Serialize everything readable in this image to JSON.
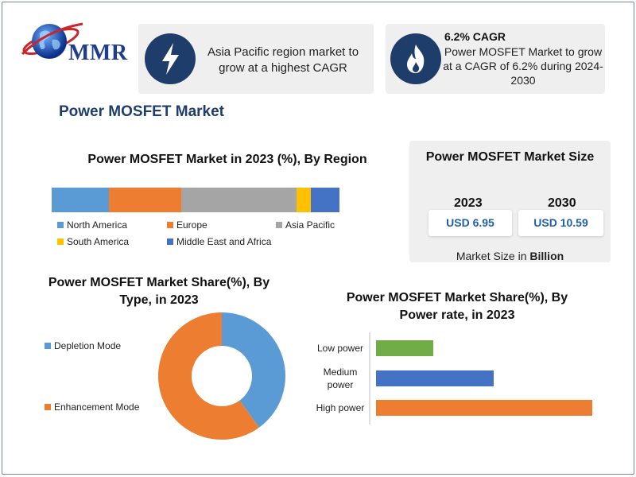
{
  "logo": {
    "text": "MMR"
  },
  "cards": {
    "cagr_region": {
      "icon": "lightning-bolt-icon",
      "text": "Asia Pacific region market to grow at a highest CAGR"
    },
    "cagr_market": {
      "icon": "flame-icon",
      "title": "6.2% CAGR",
      "text": "Power MOSFET Market to grow at a CAGR of 6.2% during 2024-2030"
    }
  },
  "page_title": "Power MOSFET Market",
  "market_size": {
    "title": "Power MOSFET Market Size",
    "year1": "2023",
    "value1": "USD 6.95",
    "year2": "2030",
    "value2": "USD 10.59",
    "note_prefix": "Market Size in ",
    "note_unit": "Billion"
  },
  "colors": {
    "north_america": "#5b9bd5",
    "europe": "#ed7d31",
    "asia_pacific": "#a5a5a5",
    "south_america": "#ffc000",
    "mea": "#4472c4",
    "depletion": "#5b9bd5",
    "enhancement": "#ed7d31",
    "low": "#70ad47",
    "medium": "#4472c4",
    "high": "#ed7d31",
    "brand_dark": "#1f3d6b"
  },
  "chart_data": [
    {
      "type": "bar",
      "stacked": true,
      "orientation": "horizontal",
      "title": "Power MOSFET Market in 2023 (%), By Region",
      "series": [
        {
          "name": "North America",
          "values": [
            20
          ]
        },
        {
          "name": "Europe",
          "values": [
            25
          ]
        },
        {
          "name": "Asia Pacific",
          "values": [
            40
          ]
        },
        {
          "name": "South America",
          "values": [
            5
          ]
        },
        {
          "name": "Middle East and Africa",
          "values": [
            10
          ]
        }
      ],
      "legend": "bottom"
    },
    {
      "type": "pie",
      "donut": true,
      "title": "Power MOSFET Market Share(%), By Type, in 2023",
      "title_lines": [
        "Power MOSFET Market Share(%), By",
        "Type, in 2023"
      ],
      "categories": [
        "Depletion Mode",
        "Enhancement Mode"
      ],
      "values": [
        40,
        60
      ],
      "legend": "left"
    },
    {
      "type": "bar",
      "orientation": "horizontal",
      "title": "Power MOSFET Market Share(%), By Power rate, in 2023",
      "title_lines": [
        "Power MOSFET Market Share(%), By",
        "Power rate, in 2023"
      ],
      "categories": [
        "Low power",
        "Medium power",
        "High power"
      ],
      "category_lines": [
        [
          "Low power"
        ],
        [
          "Medium",
          "power"
        ],
        [
          "High power"
        ]
      ],
      "values": [
        18,
        37,
        68
      ]
    }
  ]
}
